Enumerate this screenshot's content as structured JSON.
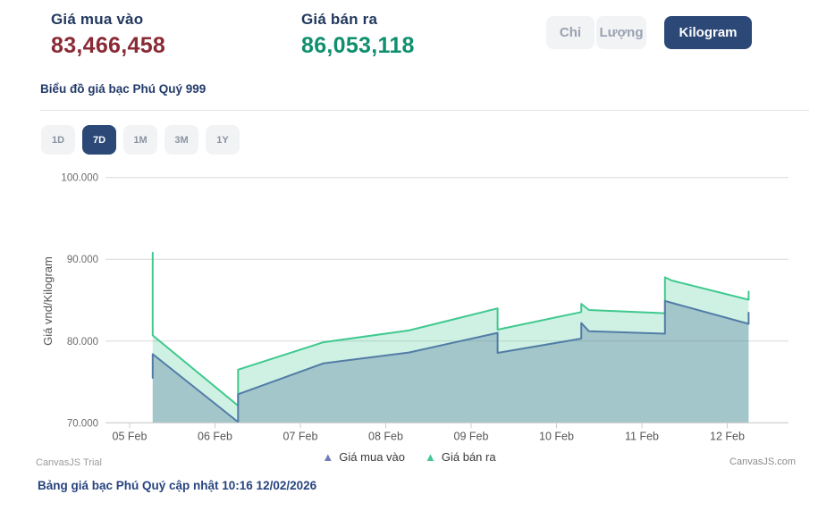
{
  "header": {
    "buy_label": "Giá mua vào",
    "buy_value": "83,466,458",
    "sell_label": "Giá bán ra",
    "sell_value": "86,053,118",
    "unit_tabs": [
      {
        "label": "Chỉ",
        "active": false
      },
      {
        "label": "Lượng",
        "active": false
      },
      {
        "label": "Kilogram",
        "active": true
      }
    ]
  },
  "subtitle": "Biểu đồ giá bạc Phú Quý 999",
  "range_tabs": [
    {
      "label": "1D",
      "active": false
    },
    {
      "label": "7D",
      "active": true
    },
    {
      "label": "1M",
      "active": false
    },
    {
      "label": "3M",
      "active": false
    },
    {
      "label": "1Y",
      "active": false
    }
  ],
  "chart_data": {
    "type": "area",
    "title": "",
    "xlabel": "",
    "ylabel": "Giá vnd/Kilogram",
    "x_unit": "days after 05 Feb",
    "x_ticks": [
      {
        "t": 0,
        "label": "05 Feb"
      },
      {
        "t": 1,
        "label": "06 Feb"
      },
      {
        "t": 2,
        "label": "07 Feb"
      },
      {
        "t": 3,
        "label": "08 Feb"
      },
      {
        "t": 4,
        "label": "09 Feb"
      },
      {
        "t": 5,
        "label": "10 Feb"
      },
      {
        "t": 6,
        "label": "11 Feb"
      },
      {
        "t": 7,
        "label": "12 Feb"
      }
    ],
    "y_ticks": [
      {
        "v": 70000,
        "label": "70.000"
      },
      {
        "v": 80000,
        "label": "80.000"
      },
      {
        "v": 90000,
        "label": "90.000"
      },
      {
        "v": 100000,
        "label": "100.000"
      }
    ],
    "ylim": [
      70000,
      103000
    ],
    "grid": "horizontal-only",
    "legend_position": "bottom",
    "series": [
      {
        "name": "Giá bán ra",
        "line_color": "#3fc98f",
        "fill_color": "rgba(63,201,143,0.25)",
        "points": [
          [
            0.27,
            90800
          ],
          [
            0.27,
            80700
          ],
          [
            1.27,
            72100
          ],
          [
            1.27,
            76500
          ],
          [
            2.27,
            79850
          ],
          [
            3.27,
            81300
          ],
          [
            4.31,
            84000
          ],
          [
            4.31,
            81400
          ],
          [
            5.29,
            83550
          ],
          [
            5.29,
            84550
          ],
          [
            5.38,
            83800
          ],
          [
            6.27,
            83400
          ],
          [
            6.27,
            87800
          ],
          [
            6.35,
            87400
          ],
          [
            7.25,
            85050
          ],
          [
            7.25,
            86053
          ]
        ]
      },
      {
        "name": "Giá mua vào",
        "line_color": "#527ca6",
        "fill_color": "rgba(86,121,160,0.36)",
        "points": [
          [
            0.27,
            75500
          ],
          [
            0.27,
            78400
          ],
          [
            1.27,
            70100
          ],
          [
            1.27,
            73500
          ],
          [
            2.27,
            77280
          ],
          [
            3.27,
            78600
          ],
          [
            4.31,
            81000
          ],
          [
            4.31,
            78550
          ],
          [
            5.29,
            80300
          ],
          [
            5.29,
            82200
          ],
          [
            5.38,
            81200
          ],
          [
            6.27,
            80900
          ],
          [
            6.27,
            84900
          ],
          [
            7.25,
            82100
          ],
          [
            7.25,
            83466
          ]
        ]
      }
    ]
  },
  "legend": [
    {
      "label": "Giá mua vào",
      "color": "#6e7db8"
    },
    {
      "label": "Giá bán ra",
      "color": "#45c795"
    }
  ],
  "watermarks": {
    "trial": "CanvasJS Trial",
    "site": "CanvasJS.com"
  },
  "caption": "Bảng giá bạc Phú Quý cập nhật 10:16 12/02/2026",
  "colors": {
    "buy_value": "#8a2a35",
    "sell_value": "#0f8f6e",
    "label_navy": "#22395e",
    "active_navy": "#2b4877",
    "gridline": "#d9d9d9",
    "axis_line": "#cccccc"
  }
}
